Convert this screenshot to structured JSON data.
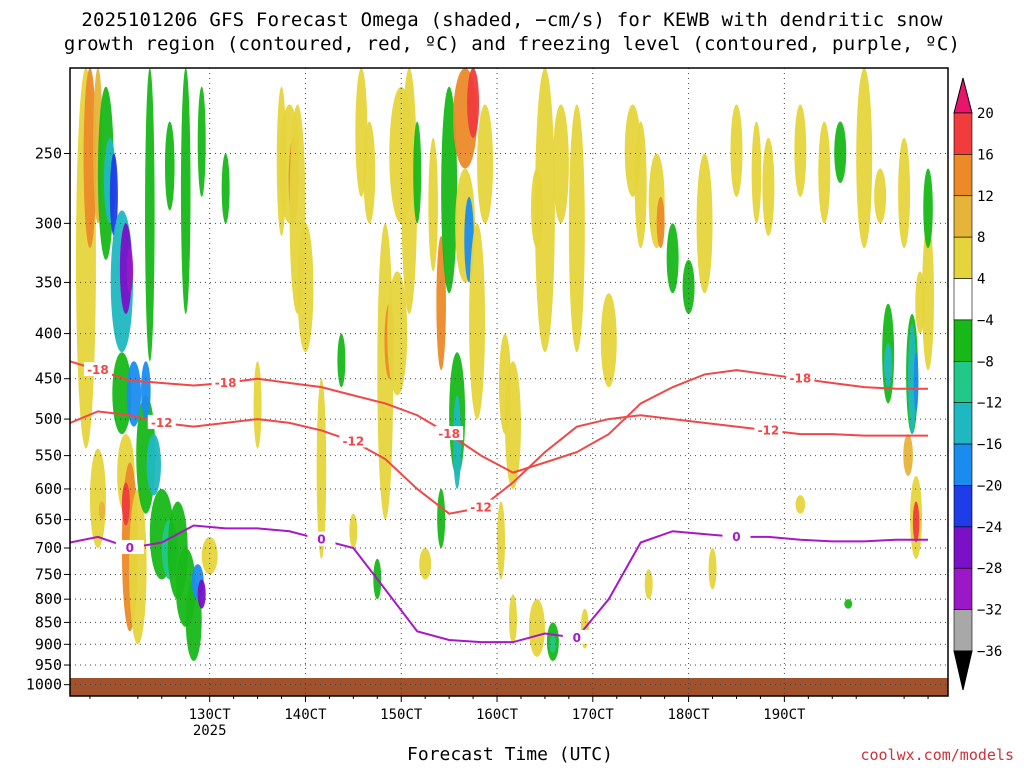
{
  "title": {
    "line1": "2025101206 GFS Forecast Omega (shaded, −cm/s) for KEWB with dendritic snow",
    "line2": "growth region (contoured, red, ºC) and freezing level (contoured, purple, ºC)"
  },
  "credit": "coolwx.com/models",
  "chart_data": {
    "type": "heatmap",
    "title": "2025101206 GFS Forecast Omega (shaded, −cm/s) for KEWB with dendritic snow growth region (contoured, red, ºC) and freezing level (contoured, purple, ºC)",
    "xlabel": "Forecast Time (UTC)",
    "ylabel": "",
    "y_axis": {
      "scale": "log-pressure",
      "reversed": true,
      "ticks": [
        250,
        300,
        350,
        400,
        450,
        500,
        550,
        600,
        650,
        700,
        750,
        800,
        850,
        900,
        950,
        1000
      ],
      "range": [
        200,
        1030
      ]
    },
    "x_axis": {
      "ticks": [
        "130CT",
        "140CT",
        "150CT",
        "160CT",
        "170CT",
        "180CT",
        "190CT"
      ],
      "sub_label": "2025",
      "range_hours": [
        -35,
        185
      ]
    },
    "grid": true,
    "colorbar": {
      "levels": [
        "20",
        "16",
        "12",
        "8",
        "4",
        "−4",
        "−8",
        "−12",
        "−16",
        "−20",
        "−24",
        "−28",
        "−32",
        "−36"
      ],
      "colors": [
        "#e8156c",
        "#f03c3c",
        "#ec8a28",
        "#e6b43a",
        "#e6d43c",
        "#ffffff",
        "#18b818",
        "#21c888",
        "#20b8c0",
        "#1a8cf0",
        "#1e3ce8",
        "#7a10c8",
        "#9a18c8",
        "#a8a8a8",
        "#000000"
      ]
    },
    "contours": [
      {
        "color": "#f04848",
        "label": "-18",
        "levels_hpa": [
          430,
          440,
          452,
          455,
          458,
          455,
          450,
          455,
          460,
          470,
          480,
          495,
          520,
          550,
          575,
          560,
          545,
          520,
          480,
          460,
          445,
          440,
          445,
          450,
          455,
          460,
          462,
          462
        ]
      },
      {
        "color": "#f04848",
        "label": "-12",
        "levels_hpa": [
          505,
          490,
          495,
          505,
          510,
          505,
          500,
          505,
          515,
          530,
          555,
          600,
          640,
          630,
          590,
          545,
          510,
          500,
          495,
          500,
          505,
          510,
          515,
          520,
          520,
          522,
          522,
          522
        ]
      },
      {
        "color": "#a818c8",
        "label": "0",
        "levels_hpa": [
          690,
          680,
          700,
          690,
          660,
          665,
          665,
          670,
          685,
          700,
          780,
          870,
          890,
          895,
          895,
          875,
          885,
          800,
          690,
          670,
          675,
          680,
          680,
          685,
          688,
          688,
          685,
          685
        ]
      }
    ],
    "contour_times_hours": [
      -35,
      -28,
      -20,
      -12,
      -4,
      4,
      12,
      20,
      28,
      36,
      44,
      52,
      60,
      68,
      76,
      84,
      92,
      100,
      108,
      116,
      124,
      132,
      140,
      148,
      156,
      164,
      172,
      180
    ]
  }
}
